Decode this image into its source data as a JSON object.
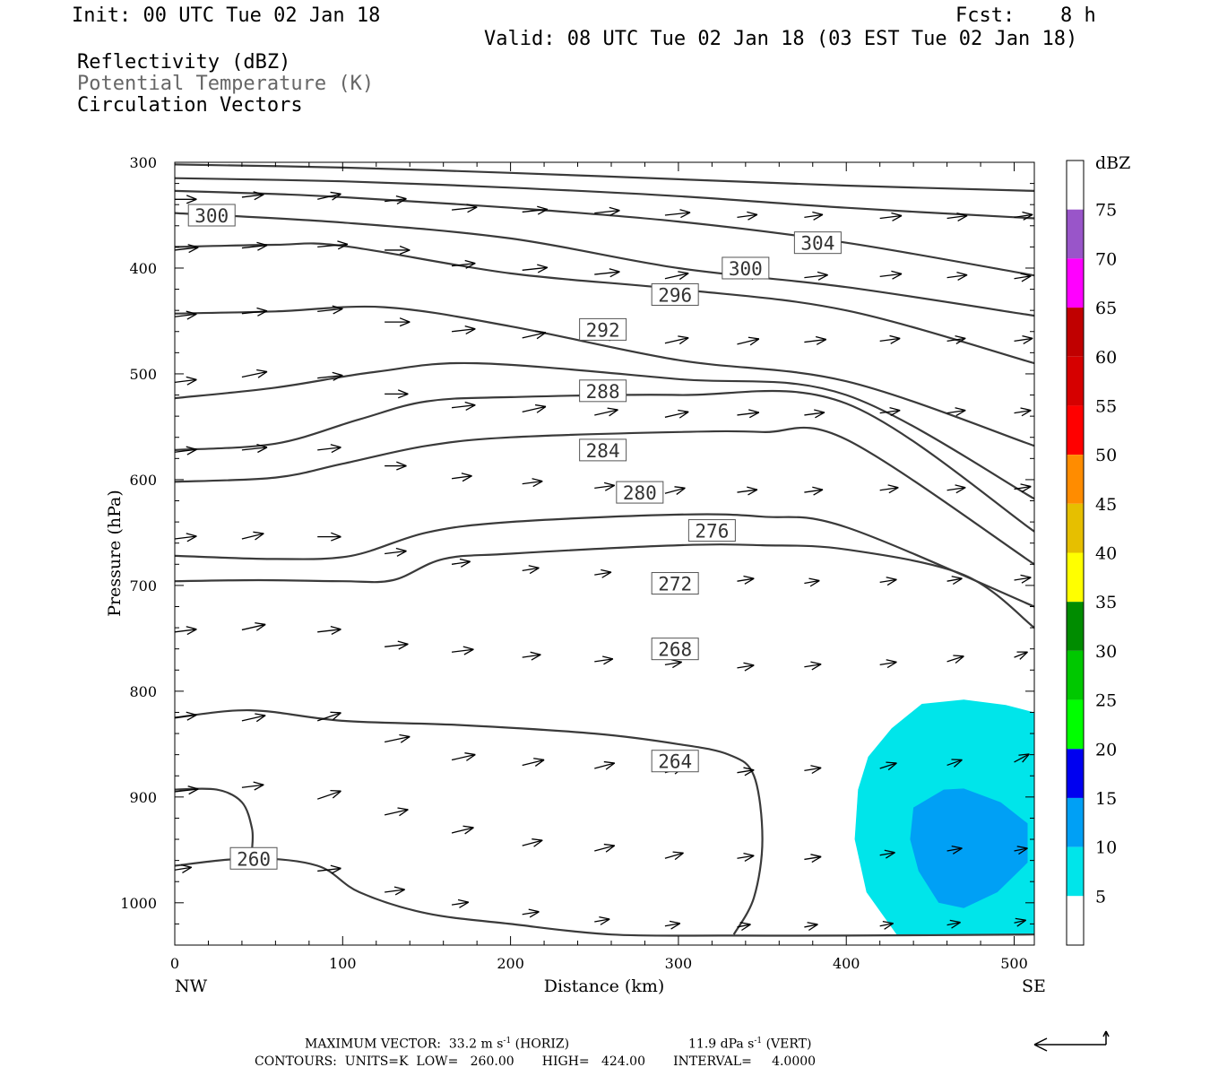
{
  "header": {
    "init": "Init: 00 UTC Tue 02 Jan 18",
    "fcst_label": "Fcst:",
    "fcst_value": "8 h",
    "valid": "Valid: 08 UTC Tue 02 Jan 18 (03 EST Tue 02 Jan 18)",
    "fields": [
      "Reflectivity (dBZ)",
      "Potential Temperature (K)",
      "Circulation Vectors"
    ]
  },
  "footer": {
    "max_vector": "MAXIMUM VECTOR:  33.2 m s",
    "max_vector_tail": " (HORIZ)",
    "vert_value": "11.9 dPa s",
    "vert_tail": " (VERT)",
    "exp": "-1",
    "contours": "CONTOURS:  UNITS=K  LOW=   260.00       HIGH=   424.00       INTERVAL=     4.0000"
  },
  "chart_data": {
    "type": "cross-section",
    "xlabel": "Distance (km)",
    "ylabel": "Pressure (hPa)",
    "xlim": [
      0,
      512
    ],
    "ylim": [
      1040,
      300
    ],
    "x_ticks": [
      0,
      100,
      200,
      300,
      400,
      500
    ],
    "y_ticks": [
      300,
      400,
      500,
      600,
      700,
      800,
      900,
      1000
    ],
    "x_end_labels": {
      "left": "NW",
      "right": "SE"
    },
    "colorbar": {
      "title": "dBZ",
      "levels": [
        5,
        10,
        15,
        20,
        25,
        30,
        35,
        40,
        45,
        50,
        55,
        60,
        65,
        70,
        75
      ],
      "colors": [
        "#ffffff",
        "#00e5ea",
        "#00a0f5",
        "#0000f0",
        "#00ff00",
        "#00c800",
        "#008c00",
        "#ffff00",
        "#e6bf00",
        "#ff8c00",
        "#ff0000",
        "#d60000",
        "#c00000",
        "#ff00ff",
        "#9955c9",
        "#ffffff"
      ]
    },
    "theta_contours": [
      {
        "label": "304",
        "label_at": [
          383,
          376
        ],
        "points": [
          [
            0,
            302
          ],
          [
            100,
            305
          ],
          [
            200,
            310
          ],
          [
            300,
            316
          ],
          [
            400,
            322
          ],
          [
            512,
            327
          ]
        ]
      },
      {
        "label": "300",
        "label_at": [
          340,
          400
        ],
        "points": [
          [
            0,
            315
          ],
          [
            100,
            318
          ],
          [
            200,
            324
          ],
          [
            300,
            332
          ],
          [
            400,
            343
          ],
          [
            512,
            353
          ]
        ]
      },
      {
        "label": "300",
        "label_at": [
          22,
          350
        ],
        "points": [
          [
            0,
            327
          ],
          [
            60,
            330
          ],
          [
            100,
            333
          ],
          [
            200,
            343
          ],
          [
            300,
            356
          ],
          [
            400,
            376
          ],
          [
            512,
            407
          ]
        ]
      },
      {
        "label": "296",
        "label_at": [
          298,
          425
        ],
        "points": [
          [
            0,
            348
          ],
          [
            100,
            357
          ],
          [
            200,
            372
          ],
          [
            300,
            400
          ],
          [
            400,
            418
          ],
          [
            512,
            445
          ]
        ]
      },
      {
        "label": "292",
        "label_at": [
          255,
          458
        ],
        "points": [
          [
            0,
            380
          ],
          [
            60,
            378
          ],
          [
            100,
            379
          ],
          [
            200,
            405
          ],
          [
            300,
            420
          ],
          [
            400,
            440
          ],
          [
            512,
            490
          ]
        ]
      },
      {
        "label": "288",
        "label_at": [
          255,
          516
        ],
        "points": [
          [
            0,
            443
          ],
          [
            60,
            441
          ],
          [
            125,
            437
          ],
          [
            200,
            455
          ],
          [
            300,
            487
          ],
          [
            400,
            507
          ],
          [
            512,
            568
          ]
        ]
      },
      {
        "label": "284",
        "label_at": [
          255,
          572
        ],
        "points": [
          [
            0,
            523
          ],
          [
            60,
            513
          ],
          [
            120,
            498
          ],
          [
            180,
            490
          ],
          [
            300,
            505
          ],
          [
            400,
            520
          ],
          [
            512,
            618
          ]
        ]
      },
      {
        "label": "280",
        "label_at": [
          277,
          612
        ],
        "points": [
          [
            0,
            572
          ],
          [
            60,
            566
          ],
          [
            110,
            543
          ],
          [
            150,
            526
          ],
          [
            200,
            522
          ],
          [
            300,
            520
          ],
          [
            400,
            528
          ],
          [
            512,
            649
          ]
        ]
      },
      {
        "label": "276",
        "label_at": [
          320,
          648
        ],
        "points": [
          [
            0,
            602
          ],
          [
            60,
            598
          ],
          [
            100,
            585
          ],
          [
            150,
            568
          ],
          [
            200,
            560
          ],
          [
            300,
            555
          ],
          [
            350,
            555
          ],
          [
            400,
            562
          ],
          [
            512,
            680
          ]
        ]
      },
      {
        "label": "272",
        "label_at": [
          298,
          698
        ],
        "points": [
          [
            0,
            672
          ],
          [
            60,
            675
          ],
          [
            105,
            672
          ],
          [
            150,
            650
          ],
          [
            200,
            640
          ],
          [
            300,
            633
          ],
          [
            350,
            635
          ],
          [
            400,
            645
          ],
          [
            512,
            720
          ]
        ]
      },
      {
        "label": "268",
        "label_at": [
          298,
          760
        ],
        "points": [
          [
            0,
            696
          ],
          [
            50,
            695
          ],
          [
            100,
            696
          ],
          [
            130,
            695
          ],
          [
            160,
            675
          ],
          [
            200,
            670
          ],
          [
            300,
            662
          ],
          [
            350,
            662
          ],
          [
            400,
            666
          ],
          [
            470,
            690
          ],
          [
            512,
            740
          ]
        ]
      },
      {
        "label": "264",
        "label_at": [
          298,
          866
        ],
        "points": [
          [
            0,
            825
          ],
          [
            45,
            818
          ],
          [
            100,
            828
          ],
          [
            170,
            832
          ],
          [
            250,
            840
          ],
          [
            300,
            850
          ],
          [
            330,
            860
          ],
          [
            345,
            880
          ],
          [
            350,
            940
          ],
          [
            345,
            995
          ],
          [
            333,
            1030
          ]
        ]
      },
      {
        "label": "260",
        "label_at": [
          47,
          958
        ],
        "points": [
          [
            0,
            965
          ],
          [
            45,
            958
          ],
          [
            85,
            965
          ],
          [
            110,
            990
          ],
          [
            150,
            1010
          ],
          [
            200,
            1020
          ],
          [
            260,
            1030
          ],
          [
            330,
            1031
          ],
          [
            400,
            1031
          ],
          [
            512,
            1030
          ]
        ]
      },
      {
        "label": "",
        "points": [
          [
            0,
            893
          ],
          [
            25,
            893
          ],
          [
            40,
            905
          ],
          [
            46,
            930
          ],
          [
            46,
            950
          ]
        ]
      }
    ],
    "reflectivity_regions": [
      {
        "dbz": 5,
        "points": [
          [
            427,
            835
          ],
          [
            445,
            812
          ],
          [
            470,
            808
          ],
          [
            495,
            813
          ],
          [
            512,
            820
          ],
          [
            512,
            1030
          ],
          [
            430,
            1030
          ],
          [
            412,
            990
          ],
          [
            405,
            940
          ],
          [
            407,
            893
          ],
          [
            413,
            862
          ]
        ]
      },
      {
        "dbz": 10,
        "points": [
          [
            440,
            910
          ],
          [
            458,
            893
          ],
          [
            470,
            892
          ],
          [
            492,
            905
          ],
          [
            508,
            925
          ],
          [
            508,
            962
          ],
          [
            490,
            990
          ],
          [
            470,
            1005
          ],
          [
            455,
            1000
          ],
          [
            443,
            970
          ],
          [
            438,
            940
          ]
        ]
      }
    ],
    "vectors": [
      [
        0,
        335,
        13,
        0
      ],
      [
        40,
        333,
        13,
        -1
      ],
      [
        85,
        335,
        14,
        -2
      ],
      [
        125,
        337,
        13,
        -1
      ],
      [
        165,
        345,
        15,
        -1
      ],
      [
        207,
        347,
        15,
        -1
      ],
      [
        250,
        348,
        15,
        -1
      ],
      [
        292,
        350,
        15,
        -1
      ],
      [
        335,
        352,
        12,
        -1
      ],
      [
        375,
        352,
        11,
        -1
      ],
      [
        420,
        353,
        13,
        -1
      ],
      [
        460,
        353,
        12,
        -1
      ],
      [
        500,
        352,
        11,
        -1
      ],
      [
        0,
        383,
        14,
        -1
      ],
      [
        40,
        381,
        15,
        -1
      ],
      [
        85,
        380,
        18,
        -1
      ],
      [
        125,
        383,
        15,
        0
      ],
      [
        165,
        398,
        14,
        -1
      ],
      [
        207,
        402,
        15,
        -1
      ],
      [
        250,
        406,
        15,
        -1
      ],
      [
        292,
        410,
        14,
        -2
      ],
      [
        335,
        410,
        14,
        -2
      ],
      [
        375,
        409,
        14,
        -1
      ],
      [
        420,
        408,
        13,
        -1
      ],
      [
        460,
        409,
        12,
        -1
      ],
      [
        500,
        410,
        10,
        -1
      ],
      [
        0,
        446,
        13,
        -1
      ],
      [
        40,
        443,
        15,
        -1
      ],
      [
        85,
        441,
        15,
        -1
      ],
      [
        125,
        451,
        15,
        0
      ],
      [
        165,
        460,
        14,
        -1
      ],
      [
        207,
        466,
        14,
        -2
      ],
      [
        250,
        468,
        14,
        -2
      ],
      [
        292,
        471,
        14,
        -2
      ],
      [
        335,
        472,
        13,
        -2
      ],
      [
        375,
        470,
        13,
        -1
      ],
      [
        420,
        469,
        12,
        -1
      ],
      [
        460,
        469,
        11,
        -1
      ],
      [
        500,
        469,
        11,
        -1
      ],
      [
        0,
        508,
        13,
        -1
      ],
      [
        40,
        503,
        15,
        -2
      ],
      [
        85,
        504,
        15,
        -1
      ],
      [
        125,
        519,
        14,
        0
      ],
      [
        165,
        532,
        14,
        -1
      ],
      [
        207,
        536,
        14,
        -2
      ],
      [
        250,
        539,
        14,
        -2
      ],
      [
        292,
        541,
        14,
        -2
      ],
      [
        335,
        539,
        13,
        -1
      ],
      [
        375,
        539,
        12,
        -1
      ],
      [
        420,
        537,
        12,
        -1
      ],
      [
        460,
        537,
        11,
        -1
      ],
      [
        500,
        537,
        10,
        -1
      ],
      [
        0,
        574,
        13,
        -1
      ],
      [
        40,
        572,
        15,
        -1
      ],
      [
        85,
        572,
        14,
        -1
      ],
      [
        125,
        587,
        13,
        0
      ],
      [
        165,
        599,
        12,
        -1
      ],
      [
        207,
        604,
        12,
        -1
      ],
      [
        250,
        608,
        12,
        -1
      ],
      [
        292,
        613,
        12,
        -2
      ],
      [
        335,
        612,
        12,
        -1
      ],
      [
        375,
        612,
        11,
        -1
      ],
      [
        420,
        610,
        11,
        -1
      ],
      [
        460,
        610,
        11,
        -1
      ],
      [
        500,
        609,
        10,
        -1
      ],
      [
        0,
        656,
        13,
        -1
      ],
      [
        40,
        656,
        13,
        -2
      ],
      [
        85,
        654,
        14,
        0
      ],
      [
        125,
        670,
        13,
        -1
      ],
      [
        165,
        680,
        11,
        -1
      ],
      [
        207,
        686,
        10,
        -1
      ],
      [
        250,
        690,
        10,
        -1
      ],
      [
        292,
        693,
        11,
        -1
      ],
      [
        335,
        696,
        10,
        -1
      ],
      [
        375,
        698,
        9,
        -1
      ],
      [
        420,
        697,
        10,
        -1
      ],
      [
        460,
        696,
        9,
        -1
      ],
      [
        500,
        695,
        10,
        -1
      ],
      [
        0,
        744,
        13,
        -1
      ],
      [
        40,
        742,
        14,
        -2
      ],
      [
        85,
        744,
        14,
        -1
      ],
      [
        125,
        758,
        14,
        -1
      ],
      [
        165,
        763,
        13,
        -1
      ],
      [
        207,
        768,
        11,
        -1
      ],
      [
        250,
        772,
        11,
        -1
      ],
      [
        292,
        775,
        10,
        -1
      ],
      [
        335,
        778,
        10,
        -1
      ],
      [
        375,
        777,
        10,
        -1
      ],
      [
        420,
        775,
        10,
        -1
      ],
      [
        460,
        772,
        10,
        -2
      ],
      [
        500,
        768,
        8,
        -2
      ],
      [
        0,
        825,
        13,
        -1
      ],
      [
        40,
        828,
        14,
        -2
      ],
      [
        85,
        828,
        14,
        -3
      ],
      [
        125,
        848,
        15,
        -2
      ],
      [
        165,
        865,
        14,
        -2
      ],
      [
        207,
        870,
        13,
        -2
      ],
      [
        250,
        873,
        12,
        -2
      ],
      [
        292,
        877,
        11,
        -2
      ],
      [
        335,
        877,
        10,
        -1
      ],
      [
        375,
        875,
        10,
        -1
      ],
      [
        420,
        873,
        10,
        -2
      ],
      [
        460,
        870,
        9,
        -2
      ],
      [
        500,
        867,
        9,
        -3
      ],
      [
        0,
        895,
        14,
        -1
      ],
      [
        40,
        891,
        13,
        -1
      ],
      [
        85,
        902,
        14,
        -3
      ],
      [
        125,
        917,
        14,
        -2
      ],
      [
        165,
        934,
        13,
        -2
      ],
      [
        207,
        946,
        12,
        -2
      ],
      [
        250,
        951,
        12,
        -2
      ],
      [
        292,
        958,
        11,
        -2
      ],
      [
        335,
        958,
        10,
        -1
      ],
      [
        375,
        959,
        10,
        -1
      ],
      [
        420,
        955,
        9,
        -1
      ],
      [
        460,
        951,
        9,
        -1
      ],
      [
        500,
        951,
        8,
        -1
      ],
      [
        0,
        969,
        10,
        -1
      ],
      [
        40,
        963,
        14,
        -1
      ],
      [
        85,
        970,
        14,
        -1
      ],
      [
        125,
        990,
        12,
        -1
      ],
      [
        165,
        1002,
        10,
        -1
      ],
      [
        207,
        1011,
        10,
        -1
      ],
      [
        250,
        1018,
        9,
        -1
      ],
      [
        292,
        1022,
        9,
        -1
      ],
      [
        335,
        1023,
        8,
        -1
      ],
      [
        375,
        1023,
        8,
        -1
      ],
      [
        420,
        1022,
        8,
        -1
      ],
      [
        460,
        1021,
        8,
        -1
      ],
      [
        500,
        1019,
        7,
        -1
      ]
    ],
    "legend_arrow_dir": "left-up"
  }
}
